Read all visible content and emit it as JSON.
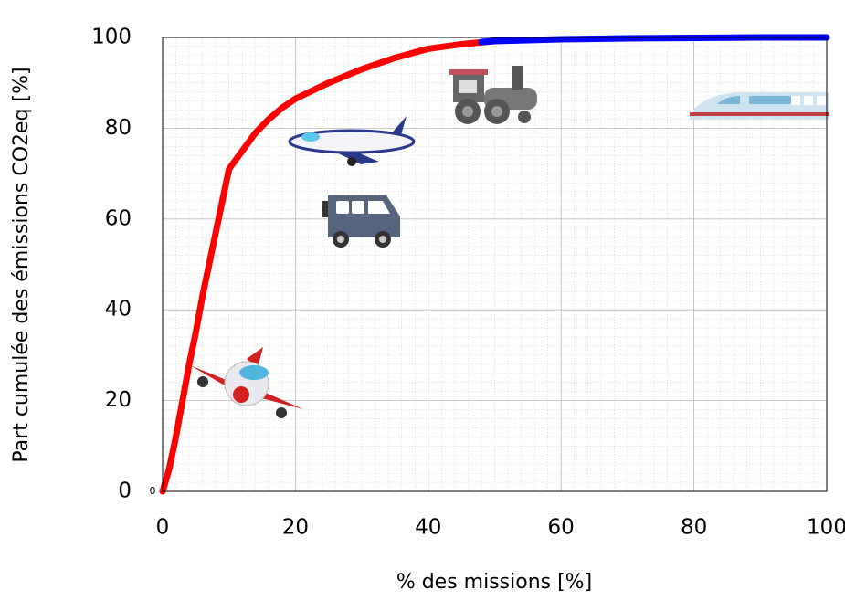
{
  "chart_data": {
    "type": "line",
    "xlabel": "% des missions [%]",
    "ylabel": "Part cumulée des émissions CO2eq [%]",
    "origin_note": "0",
    "xlim": [
      0,
      100
    ],
    "ylim": [
      0,
      100
    ],
    "xticks": [
      0,
      20,
      40,
      60,
      80,
      100
    ],
    "yticks": [
      0,
      20,
      40,
      60,
      80,
      100
    ],
    "grid": true,
    "minor_grid_divisions": 10,
    "series": [
      {
        "color": "#ff0000",
        "x": [
          0,
          1,
          2,
          3,
          4,
          5,
          6,
          7,
          8,
          9,
          10,
          12,
          14,
          16,
          18,
          20,
          25,
          30,
          35,
          40,
          45,
          50
        ],
        "values": [
          0,
          5,
          12,
          20,
          28,
          35,
          43,
          50,
          57,
          64,
          71,
          75,
          79,
          82,
          84.5,
          86.5,
          90,
          93,
          95.5,
          97.5,
          98.5,
          99.2
        ]
      },
      {
        "color": "#0000ff",
        "x": [
          48,
          50,
          55,
          60,
          70,
          80,
          90,
          100
        ],
        "values": [
          99,
          99.2,
          99.4,
          99.6,
          99.8,
          99.9,
          100,
          100
        ]
      }
    ]
  }
}
